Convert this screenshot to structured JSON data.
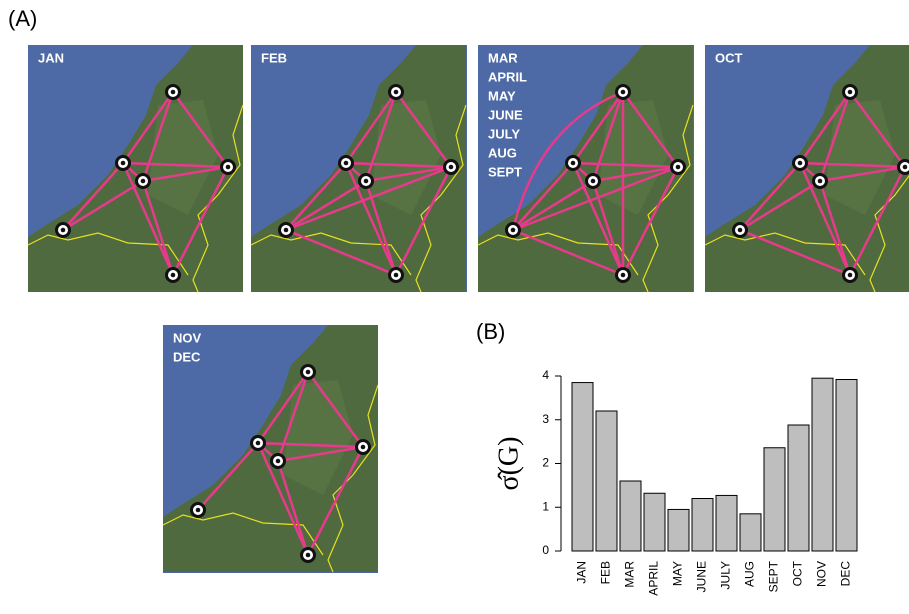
{
  "panel_a_label": "(A)",
  "panel_b_label": "(B)",
  "maps": [
    {
      "labels": [
        "JAN"
      ]
    },
    {
      "labels": [
        "FEB"
      ]
    },
    {
      "labels": [
        "MAR",
        "APRIL",
        "MAY",
        "JUNE",
        "JULY",
        "AUG",
        "SEPT"
      ]
    },
    {
      "labels": [
        "OCT"
      ]
    },
    {
      "labels": [
        "NOV",
        "DEC"
      ]
    }
  ],
  "chart_data": {
    "type": "bar",
    "ylabel": "σ̂(G)",
    "categories": [
      "JAN",
      "FEB",
      "MAR",
      "APRIL",
      "MAY",
      "JUNE",
      "JULY",
      "AUG",
      "SEPT",
      "OCT",
      "NOV",
      "DEC"
    ],
    "values": [
      3.85,
      3.2,
      1.6,
      1.32,
      0.95,
      1.2,
      1.27,
      0.85,
      2.36,
      2.88,
      3.95,
      3.92
    ],
    "color": "#bebebe",
    "ylim": [
      0,
      4
    ],
    "yticks": [
      0,
      1,
      2,
      3,
      4
    ]
  }
}
